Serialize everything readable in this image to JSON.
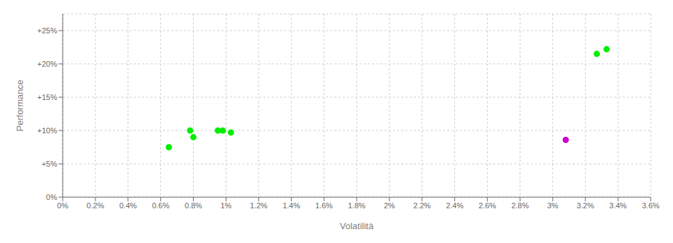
{
  "chart_data": {
    "type": "scatter",
    "x_label": "Volatilità",
    "y_label": "Performance",
    "series": [
      {
        "color": "#00ee00",
        "x": [
          0.0065,
          0.0078,
          0.008,
          0.0095,
          0.0098,
          0.0103,
          0.0327,
          0.0333
        ],
        "values": [
          0.075,
          0.1,
          0.09,
          0.1,
          0.1,
          0.097,
          0.215,
          0.222
        ]
      },
      {
        "color": "#cc00cc",
        "x": [
          0.0308
        ],
        "values": [
          0.086
        ]
      }
    ],
    "xlim": [
      0.0,
      0.036
    ],
    "ylim": [
      0.0,
      0.275
    ],
    "xticks": [
      {
        "value": 0.0,
        "label": "0%"
      },
      {
        "value": 0.002,
        "label": "0.2%"
      },
      {
        "value": 0.004,
        "label": "0.4%"
      },
      {
        "value": 0.006,
        "label": "0.6%"
      },
      {
        "value": 0.008,
        "label": "0.8%"
      },
      {
        "value": 0.01,
        "label": "1%"
      },
      {
        "value": 0.012,
        "label": "1.2%"
      },
      {
        "value": 0.014,
        "label": "1.4%"
      },
      {
        "value": 0.016,
        "label": "1.6%"
      },
      {
        "value": 0.018,
        "label": "1.8%"
      },
      {
        "value": 0.02,
        "label": "2%"
      },
      {
        "value": 0.022,
        "label": "2.2%"
      },
      {
        "value": 0.024,
        "label": "2.4%"
      },
      {
        "value": 0.026,
        "label": "2.6%"
      },
      {
        "value": 0.028,
        "label": "2.8%"
      },
      {
        "value": 0.03,
        "label": "3%"
      },
      {
        "value": 0.032,
        "label": "3.2%"
      },
      {
        "value": 0.034,
        "label": "3.4%"
      },
      {
        "value": 0.036,
        "label": "3.6%"
      }
    ],
    "yticks": [
      {
        "value": 0.0,
        "label": "0%"
      },
      {
        "value": 0.05,
        "label": "+5%"
      },
      {
        "value": 0.1,
        "label": "+10%"
      },
      {
        "value": 0.15,
        "label": "+15%"
      },
      {
        "value": 0.2,
        "label": "+20%"
      },
      {
        "value": 0.25,
        "label": "+25%"
      }
    ],
    "grid": true
  }
}
